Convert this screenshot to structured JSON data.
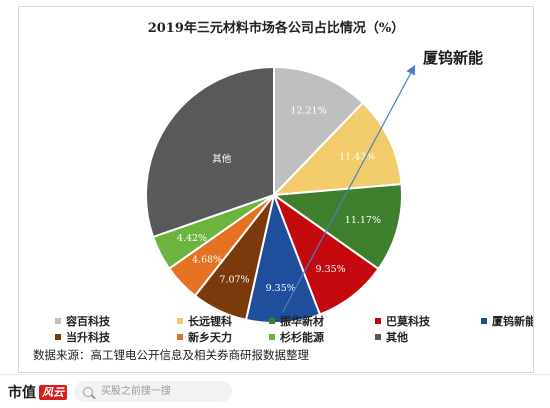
{
  "chart_data": {
    "type": "pie",
    "title": "2019年三元材料市场各公司占比情况（%）",
    "series": [
      {
        "name": "容百科技",
        "value": 12.21,
        "label": "12.21%",
        "color": "#bfbfbf"
      },
      {
        "name": "长远锂科",
        "value": 11.43,
        "label": "11.43%",
        "color": "#f2cc6b"
      },
      {
        "name": "振华新材",
        "value": 11.17,
        "label": "11.17%",
        "color": "#3e7f2e"
      },
      {
        "name": "巴莫科技",
        "value": 9.35,
        "label": "9.35%",
        "color": "#c3090e"
      },
      {
        "name": "厦钨新能",
        "value": 9.35,
        "label": "9.35%",
        "color": "#1f4e9c"
      },
      {
        "name": "当升科技",
        "value": 7.07,
        "label": "7.07%",
        "color": "#7a3a0c"
      },
      {
        "name": "新乡天力",
        "value": 4.68,
        "label": "4.68%",
        "color": "#e57222"
      },
      {
        "name": "杉杉能源",
        "value": 4.42,
        "label": "4.42%",
        "color": "#6db33f"
      },
      {
        "name": "其他",
        "value": 30.32,
        "label": "其他",
        "color": "#595959"
      }
    ],
    "annotation": "厦钨新能",
    "legend_position": "bottom",
    "source_note": "数据来源：高工锂电公开信息及相关券商研报数据整理"
  },
  "footer": {
    "brand": "市值",
    "brand_mark": "风云",
    "search_placeholder": "买股之前搜一搜"
  }
}
